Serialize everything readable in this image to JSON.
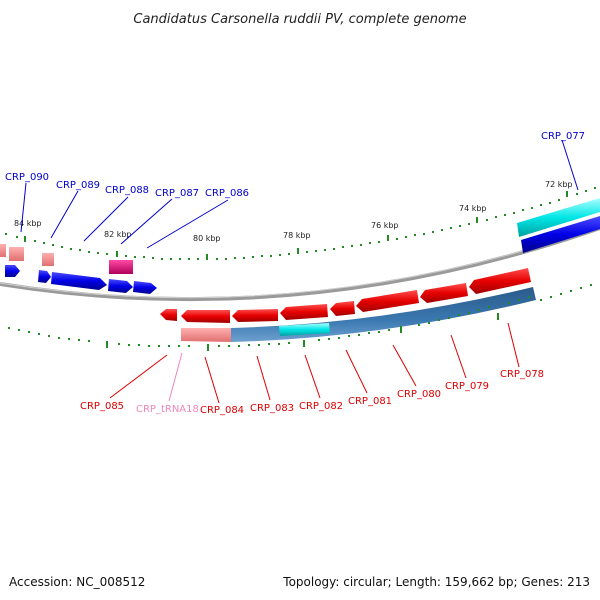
{
  "title": "Candidatus Carsonella ruddii PV, complete genome",
  "footer": {
    "accession": "Accession: NC_008512",
    "summary": "Topology: circular; Length: 159,662 bp; Genes: 213"
  },
  "kbp_labels": [
    "84 kbp",
    "82 kbp",
    "80 kbp",
    "78 kbp",
    "76 kbp",
    "74 kbp",
    "72 kbp"
  ],
  "outer_labels": [
    "CRP_090",
    "CRP_089",
    "CRP_088",
    "CRP_087",
    "CRP_086",
    "CRP_077"
  ],
  "inner_labels": [
    "CRP_085",
    "CRP_tRNA18",
    "CRP_084",
    "CRP_083",
    "CRP_082",
    "CRP_081",
    "CRP_080",
    "CRP_079",
    "CRP_078"
  ],
  "colors": {
    "forward_cds": "#0000e6",
    "reverse_cds": "#e60000",
    "trna": "#ff8c8c",
    "rrna": "#00e6e6",
    "pseudo": "#e6007a",
    "gc_skew": "#2e6fa8",
    "ticks": "#228b22",
    "backbone": "#8c8c8c",
    "label_blue": "#0000cc",
    "label_red": "#dd0000",
    "label_pink": "#ee88bb"
  }
}
